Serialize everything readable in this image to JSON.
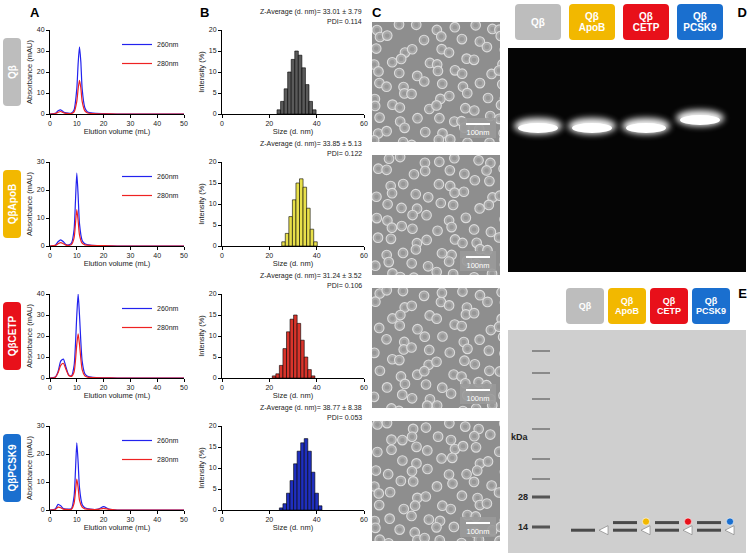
{
  "panels": [
    "A",
    "B",
    "C",
    "D",
    "E"
  ],
  "samples": [
    {
      "label": "Qβ",
      "color": "#bdbdbd"
    },
    {
      "label": "QβApoB",
      "color": "#f2b800"
    },
    {
      "label": "QβCETP",
      "color": "#e8101a"
    },
    {
      "label": "QβPCSK9",
      "color": "#1a6fcf"
    }
  ],
  "chart_data": [
    {
      "type": "line",
      "xlabel": "Elution volume (mL)",
      "ylabel": "Absorbance (mAU)",
      "x": [
        0,
        2,
        3,
        4,
        5,
        6,
        8,
        9,
        10,
        10.5,
        11,
        11.5,
        12,
        13,
        14,
        16,
        20,
        25,
        30,
        40,
        50
      ],
      "series": [
        {
          "name": "260nm",
          "color": "#2222ee",
          "values": [
            0,
            0.3,
            1.5,
            2,
            1,
            0.5,
            0.4,
            2,
            12,
            24,
            32,
            25,
            12,
            3,
            1,
            0.4,
            0.2,
            0,
            0,
            0,
            0
          ]
        },
        {
          "name": "280nm",
          "color": "#ee2222",
          "values": [
            0,
            0.2,
            0.8,
            1.2,
            0.6,
            0.3,
            0.2,
            1,
            6,
            12,
            16,
            12.5,
            6,
            1.5,
            0.5,
            0.2,
            0.1,
            0,
            0,
            0,
            0
          ]
        }
      ],
      "xlim": [
        0,
        50
      ],
      "xticks": [
        0,
        10,
        20,
        30,
        40,
        50
      ],
      "ylim": [
        0,
        40
      ],
      "yticks": [
        0,
        10,
        20,
        30,
        40
      ],
      "legend": "upper right",
      "grid": false
    },
    {
      "type": "line",
      "xlabel": "Elution volume (mL)",
      "ylabel": "Absorbance (mAU)",
      "x": [
        0,
        2,
        3,
        4,
        5,
        6,
        7,
        8,
        9,
        9.5,
        10,
        10.5,
        11,
        12,
        13,
        15,
        20,
        25,
        30,
        40,
        50
      ],
      "series": [
        {
          "name": "260nm",
          "color": "#2222ee",
          "values": [
            0,
            0.3,
            1.5,
            2.2,
            1.5,
            0.5,
            0.4,
            1,
            6,
            16,
            26,
            18,
            8,
            2,
            0.8,
            0.3,
            0.1,
            0,
            0,
            0,
            0
          ]
        },
        {
          "name": "280nm",
          "color": "#ee2222",
          "values": [
            0,
            0.2,
            0.8,
            1.2,
            0.8,
            0.3,
            0.2,
            0.5,
            3,
            8,
            13,
            9,
            4,
            1,
            0.4,
            0.2,
            0.1,
            0,
            0,
            0,
            0
          ]
        }
      ],
      "xlim": [
        0,
        50
      ],
      "xticks": [
        0,
        10,
        20,
        30,
        40,
        50
      ],
      "ylim": [
        0,
        30
      ],
      "yticks": [
        0,
        10,
        20,
        30
      ],
      "legend": "upper right",
      "grid": false
    },
    {
      "type": "line",
      "xlabel": "Elution volume (mL)",
      "ylabel": "Absorbance (mAU)",
      "x": [
        0,
        2,
        3,
        4,
        5,
        6,
        7,
        8,
        9,
        10,
        10.5,
        11,
        12,
        13,
        14,
        16,
        20,
        25,
        30,
        40,
        50
      ],
      "series": [
        {
          "name": "260nm",
          "color": "#2222ee",
          "values": [
            0,
            0.5,
            3,
            8,
            9,
            5,
            1.5,
            1,
            6,
            30,
            40,
            30,
            8,
            2,
            0.8,
            0.3,
            0.1,
            0,
            0,
            0,
            0
          ]
        },
        {
          "name": "280nm",
          "color": "#ee2222",
          "values": [
            0,
            0.4,
            2.5,
            6,
            7,
            4,
            1.2,
            0.8,
            3,
            16,
            21,
            16,
            4,
            1,
            0.4,
            0.2,
            0.1,
            0,
            0,
            0,
            0
          ]
        }
      ],
      "xlim": [
        0,
        50
      ],
      "xticks": [
        0,
        10,
        20,
        30,
        40,
        50
      ],
      "ylim": [
        0,
        40
      ],
      "yticks": [
        0,
        10,
        20,
        30,
        40
      ],
      "legend": "upper right",
      "grid": false
    },
    {
      "type": "line",
      "xlabel": "Elution volume (mL)",
      "ylabel": "Absorbance (mAU)",
      "x": [
        0,
        2,
        3,
        4,
        5,
        6,
        8,
        9,
        9.5,
        10,
        10.5,
        11,
        12,
        13,
        15,
        18,
        20,
        22,
        25,
        30,
        40,
        50
      ],
      "series": [
        {
          "name": "260nm",
          "color": "#2222ee",
          "values": [
            0,
            0.4,
            2,
            1.5,
            0.5,
            0.3,
            0.5,
            5,
            14,
            24,
            17,
            8,
            2,
            0.8,
            0.3,
            0.3,
            1.2,
            0.3,
            0,
            0,
            0,
            0
          ]
        },
        {
          "name": "280nm",
          "color": "#ee2222",
          "values": [
            0,
            0.2,
            1,
            0.8,
            0.3,
            0.2,
            0.3,
            2.5,
            6.5,
            11,
            8,
            3.5,
            1,
            0.4,
            0.2,
            0.2,
            0.6,
            0.2,
            0,
            0,
            0,
            0
          ]
        }
      ],
      "xlim": [
        0,
        50
      ],
      "xticks": [
        0,
        10,
        20,
        30,
        40,
        50
      ],
      "ylim": [
        0,
        30
      ],
      "yticks": [
        0,
        10,
        20,
        30
      ],
      "legend": "upper right",
      "grid": false
    },
    {
      "type": "bar",
      "xlabel": "Size (d. nm)",
      "ylabel": "Intensity (%)",
      "x": [
        24,
        25.5,
        27,
        28.5,
        30,
        31.5,
        33,
        34.5,
        36,
        37.5,
        39
      ],
      "values": [
        1,
        3,
        6,
        10,
        13,
        15,
        14,
        11,
        7,
        3,
        1
      ],
      "color": "#5a5a5a",
      "annotations": [
        "Z-Average (d. nm)= 33.01 ± 3.79",
        "PDI= 0.114"
      ],
      "xlim": [
        0,
        60
      ],
      "xticks": [
        0,
        20,
        40,
        60
      ],
      "ylim": [
        0,
        20
      ],
      "yticks": [
        0,
        5,
        10,
        15,
        20
      ],
      "grid": false
    },
    {
      "type": "bar",
      "xlabel": "Size (d. nm)",
      "ylabel": "Intensity (%)",
      "x": [
        26,
        27.5,
        29,
        30.5,
        32,
        33.5,
        35,
        36.5,
        38,
        39.5
      ],
      "values": [
        1,
        3,
        7,
        11,
        15,
        16,
        14,
        9,
        4,
        1
      ],
      "color": "#e8e04a",
      "annotations": [
        "Z-Average (d. nm)= 33.85 ± 5.13",
        "PDI= 0.122"
      ],
      "xlim": [
        0,
        60
      ],
      "xticks": [
        0,
        20,
        40,
        60
      ],
      "ylim": [
        0,
        20
      ],
      "yticks": [
        0,
        5,
        10,
        15,
        20
      ],
      "grid": false
    },
    {
      "type": "bar",
      "xlabel": "Size (d. nm)",
      "ylabel": "Intensity (%)",
      "x": [
        22,
        23.5,
        25,
        26.5,
        28,
        29.5,
        31,
        32.5,
        34,
        35.5,
        37,
        38.5
      ],
      "values": [
        0.5,
        1,
        3,
        7,
        11,
        14,
        15,
        13,
        9,
        5,
        2,
        0.5
      ],
      "color": "#d9342b",
      "annotations": [
        "Z-Average (d. nm)= 31.24 ± 3.52",
        "PDI= 0.106"
      ],
      "xlim": [
        0,
        60
      ],
      "xticks": [
        0,
        20,
        40,
        60
      ],
      "ylim": [
        0,
        20
      ],
      "yticks": [
        0,
        5,
        10,
        15,
        20
      ],
      "grid": false
    },
    {
      "type": "bar",
      "xlabel": "Size (d. nm)",
      "ylabel": "Intensity (%)",
      "x": [
        25,
        26.5,
        28,
        29.5,
        31,
        32.5,
        34,
        35.5,
        37,
        38.5,
        40,
        41.5
      ],
      "values": [
        0.5,
        1.5,
        4,
        7,
        11,
        14,
        16,
        17,
        14,
        9,
        4,
        1
      ],
      "color": "#1f2fbf",
      "annotations": [
        "Z-Average (d. nm)= 38.77 ± 8.38",
        "PDI= 0.053"
      ],
      "xlim": [
        0,
        60
      ],
      "xticks": [
        0,
        20,
        40,
        60
      ],
      "ylim": [
        0,
        20
      ],
      "yticks": [
        0,
        5,
        10,
        15,
        20
      ],
      "grid": false
    }
  ],
  "tem": {
    "scale_bar": "100nm"
  },
  "gel_native": {
    "lanes": [
      {
        "label": [
          "Qβ"
        ],
        "color": "#bdbdbd"
      },
      {
        "label": [
          "Qβ",
          "ApoB"
        ],
        "color": "#f2b800"
      },
      {
        "label": [
          "Qβ",
          "CETP"
        ],
        "color": "#e8101a"
      },
      {
        "label": [
          "Qβ",
          "PCSK9"
        ],
        "color": "#1a6fcf"
      }
    ]
  },
  "gel_sds": {
    "unit": "kDa",
    "markers": [
      28,
      14
    ],
    "lanes": [
      {
        "label": [
          "Qβ"
        ],
        "color": "#bdbdbd",
        "bands": [
          13
        ]
      },
      {
        "label": [
          "Qβ",
          "ApoB"
        ],
        "color": "#f2b800",
        "bands": [
          13,
          15.5
        ]
      },
      {
        "label": [
          "Qβ",
          "CETP"
        ],
        "color": "#e8101a",
        "bands": [
          13,
          15.5
        ]
      },
      {
        "label": [
          "Qβ",
          "PCSK9"
        ],
        "color": "#1a6fcf",
        "bands": [
          13,
          15.5
        ]
      }
    ]
  }
}
